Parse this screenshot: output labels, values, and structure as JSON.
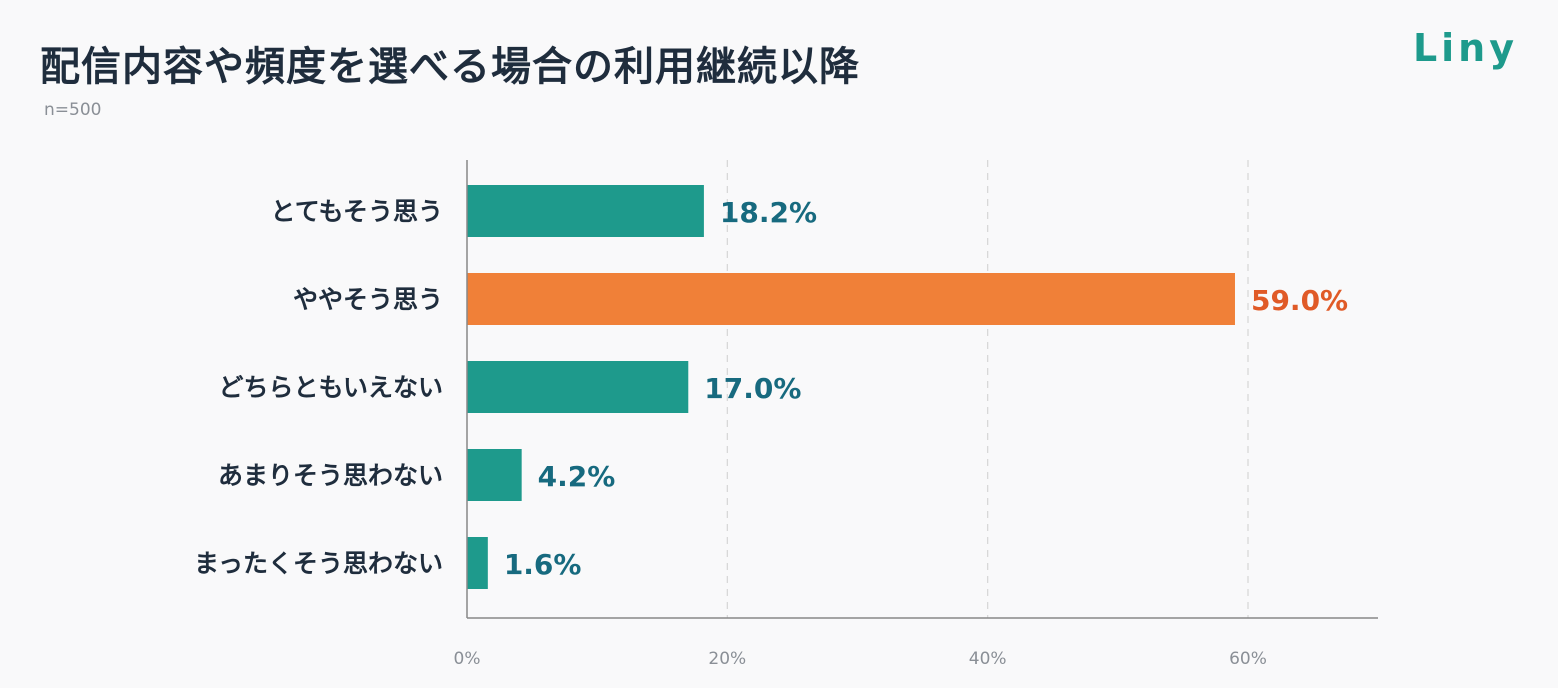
{
  "header": {
    "title": "配信内容や頻度を選べる場合の利用継続以降",
    "subtitle": "n=500",
    "logo": "Liny"
  },
  "colors": {
    "bar": "#1e9a8c",
    "highlight_bar": "#f08038",
    "value_label": "#176a7f",
    "highlight_label": "#e05a27",
    "grid": "#d5d5d5",
    "axis": "#888888"
  },
  "chart_data": {
    "type": "bar",
    "orientation": "horizontal",
    "categories": [
      "とてもそう思う",
      "ややそう思う",
      "どちらともいえない",
      "あまりそう思わない",
      "まったくそう思わない"
    ],
    "values": [
      18.2,
      59.0,
      17.0,
      4.2,
      1.6
    ],
    "value_labels": [
      "18.2%",
      "59.0%",
      "17.0%",
      "4.2%",
      "1.6%"
    ],
    "highlight_index": 1,
    "xlim": [
      0,
      70
    ],
    "xticks": [
      0,
      20,
      40,
      60
    ],
    "xtick_labels": [
      "0%",
      "20%",
      "40%",
      "60%"
    ],
    "grid": true
  }
}
